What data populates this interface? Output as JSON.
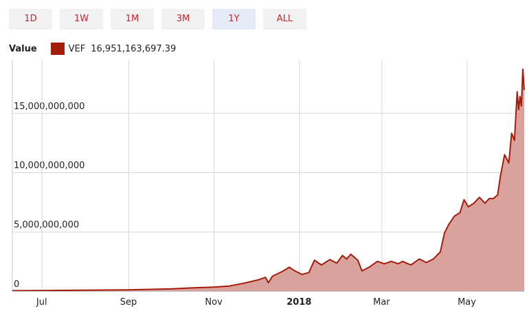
{
  "range_buttons": [
    {
      "label": "1D",
      "active": false
    },
    {
      "label": "1W",
      "active": false
    },
    {
      "label": "1M",
      "active": false
    },
    {
      "label": "3M",
      "active": false
    },
    {
      "label": "1Y",
      "active": true
    },
    {
      "label": "ALL",
      "active": false
    }
  ],
  "legend": {
    "title": "Value",
    "series_name": "VEF",
    "current_value": "16,951,163,697.39",
    "color": "#a51b0b"
  },
  "chart_data": {
    "type": "area",
    "title": "",
    "xlabel": "",
    "ylabel": "",
    "grid": true,
    "line_color": "#a51b0b",
    "fill_color": "#d9a29c",
    "x_start": "2017-06-10",
    "x_end": "2018-06-11",
    "ylim": [
      0,
      19500000000
    ],
    "y_ticks": [
      {
        "value": 0,
        "label": "0"
      },
      {
        "value": 5000000000,
        "label": "5,000,000,000"
      },
      {
        "value": 10000000000,
        "label": "10,000,000,000"
      },
      {
        "value": 15000000000,
        "label": "15,000,000,000"
      }
    ],
    "x_ticks": [
      {
        "date": "2017-07-01",
        "label": "Jul",
        "bold": false
      },
      {
        "date": "2017-09-01",
        "label": "Sep",
        "bold": false
      },
      {
        "date": "2017-11-01",
        "label": "Nov",
        "bold": false
      },
      {
        "date": "2018-01-01",
        "label": "2018",
        "bold": true
      },
      {
        "date": "2018-03-01",
        "label": "Mar",
        "bold": false
      },
      {
        "date": "2018-05-01",
        "label": "May",
        "bold": false
      }
    ],
    "series": [
      {
        "name": "VEF",
        "points": [
          [
            "2017-06-10",
            30000000
          ],
          [
            "2017-07-01",
            40000000
          ],
          [
            "2017-08-01",
            70000000
          ],
          [
            "2017-09-01",
            100000000
          ],
          [
            "2017-10-01",
            180000000
          ],
          [
            "2017-10-15",
            260000000
          ],
          [
            "2017-11-01",
            330000000
          ],
          [
            "2017-11-12",
            420000000
          ],
          [
            "2017-11-22",
            650000000
          ],
          [
            "2017-12-03",
            950000000
          ],
          [
            "2017-12-08",
            1150000000
          ],
          [
            "2017-12-10",
            700000000
          ],
          [
            "2017-12-13",
            1250000000
          ],
          [
            "2017-12-20",
            1650000000
          ],
          [
            "2017-12-25",
            2000000000
          ],
          [
            "2017-12-29",
            1700000000
          ],
          [
            "2018-01-03",
            1400000000
          ],
          [
            "2018-01-08",
            1550000000
          ],
          [
            "2018-01-12",
            2600000000
          ],
          [
            "2018-01-17",
            2200000000
          ],
          [
            "2018-01-23",
            2650000000
          ],
          [
            "2018-01-28",
            2350000000
          ],
          [
            "2018-02-01",
            3000000000
          ],
          [
            "2018-02-04",
            2700000000
          ],
          [
            "2018-02-07",
            3100000000
          ],
          [
            "2018-02-12",
            2600000000
          ],
          [
            "2018-02-15",
            1700000000
          ],
          [
            "2018-02-20",
            2000000000
          ],
          [
            "2018-02-26",
            2500000000
          ],
          [
            "2018-03-03",
            2300000000
          ],
          [
            "2018-03-08",
            2500000000
          ],
          [
            "2018-03-13",
            2300000000
          ],
          [
            "2018-03-16",
            2500000000
          ],
          [
            "2018-03-22",
            2200000000
          ],
          [
            "2018-03-28",
            2700000000
          ],
          [
            "2018-04-02",
            2400000000
          ],
          [
            "2018-04-07",
            2700000000
          ],
          [
            "2018-04-12",
            3300000000
          ],
          [
            "2018-04-15",
            4900000000
          ],
          [
            "2018-04-18",
            5600000000
          ],
          [
            "2018-04-22",
            6300000000
          ],
          [
            "2018-04-26",
            6600000000
          ],
          [
            "2018-04-29",
            7700000000
          ],
          [
            "2018-05-02",
            7100000000
          ],
          [
            "2018-05-06",
            7400000000
          ],
          [
            "2018-05-10",
            7900000000
          ],
          [
            "2018-05-14",
            7400000000
          ],
          [
            "2018-05-17",
            7800000000
          ],
          [
            "2018-05-20",
            7800000000
          ],
          [
            "2018-05-23",
            8100000000
          ],
          [
            "2018-05-25",
            9700000000
          ],
          [
            "2018-05-28",
            11500000000
          ],
          [
            "2018-05-31",
            10800000000
          ],
          [
            "2018-06-02",
            13300000000
          ],
          [
            "2018-06-04",
            12700000000
          ],
          [
            "2018-06-06",
            16800000000
          ],
          [
            "2018-06-07",
            15300000000
          ],
          [
            "2018-06-08",
            16400000000
          ],
          [
            "2018-06-09",
            15600000000
          ],
          [
            "2018-06-10",
            18700000000
          ],
          [
            "2018-06-11",
            16950000000
          ]
        ]
      }
    ]
  }
}
